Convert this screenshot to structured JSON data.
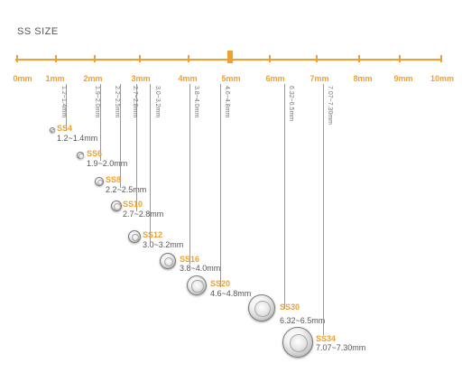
{
  "title": "SS SIZE",
  "scale": {
    "ticks": [
      "0mm",
      "1mm",
      "2mm",
      "3mm",
      "4mm",
      "5mm",
      "6mm",
      "7mm",
      "8mm",
      "9mm",
      "10mm"
    ],
    "highlight": "5mm"
  },
  "stones": [
    {
      "name": "SS4",
      "size": "1.2~1.4mm",
      "vertical_label": "1.2~1.4mm"
    },
    {
      "name": "SS6",
      "size": "1.9~2.0mm",
      "vertical_label": "1.9~2.0mm"
    },
    {
      "name": "SS8",
      "size": "2.2~2.5mm",
      "vertical_label": "2.2~2.5mm"
    },
    {
      "name": "SS10",
      "size": "2.7~2.8mm",
      "vertical_label": "2.7~2.8mm"
    },
    {
      "name": "SS12",
      "size": "3.0~3.2mm",
      "vertical_label": "3.0~3.2mm"
    },
    {
      "name": "SS16",
      "size": "3.8~4.0mm",
      "vertical_label": "3.8~4.0mm"
    },
    {
      "name": "SS20",
      "size": "4.6~4.8mm",
      "vertical_label": "4.6~4.8mm"
    },
    {
      "name": "SS30",
      "size": "6.32~6.5mm",
      "vertical_label": "6.32~6.5mm"
    },
    {
      "name": "SS34",
      "size": "7.07~7.30mm",
      "vertical_label": "7.07~7.30mm"
    }
  ],
  "colors": {
    "accent": "#f0a030",
    "text": "#555555",
    "line": "#999999"
  }
}
